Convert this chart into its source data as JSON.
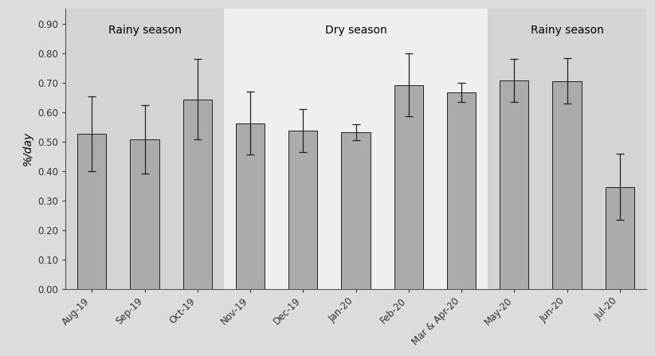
{
  "categories": [
    "Aug-19",
    "Sep-19",
    "Oct-19",
    "Nov-19",
    "Dec-19",
    "Jan-20",
    "Feb-20",
    "Mar & Apr-20",
    "May-20",
    "Jun-20",
    "Jul-20"
  ],
  "values": [
    0.527,
    0.507,
    0.643,
    0.562,
    0.537,
    0.53,
    0.692,
    0.667,
    0.707,
    0.705,
    0.345
  ],
  "errors": [
    0.127,
    0.117,
    0.137,
    0.107,
    0.072,
    0.027,
    0.107,
    0.032,
    0.072,
    0.077,
    0.112
  ],
  "bar_color": "#ABABAB",
  "bar_edgecolor": "#222222",
  "ylabel": "%/day",
  "ylim": [
    0.0,
    0.95
  ],
  "yticks": [
    0.0,
    0.1,
    0.2,
    0.3,
    0.4,
    0.5,
    0.6,
    0.7,
    0.8,
    0.9
  ],
  "rainy_bg": "#D4D4D4",
  "plot_bg": "#EFEFEF",
  "fig_bg": "#DCDCDC",
  "season_labels": [
    "Rainy season",
    "Dry season",
    "Rainy season"
  ],
  "season_label_fontsize": 10,
  "tick_fontsize": 8.5,
  "ylabel_fontsize": 10,
  "rainy1_span": [
    -0.5,
    2.5
  ],
  "dry_span": [
    2.5,
    7.5
  ],
  "rainy2_span": [
    7.5,
    10.5
  ]
}
